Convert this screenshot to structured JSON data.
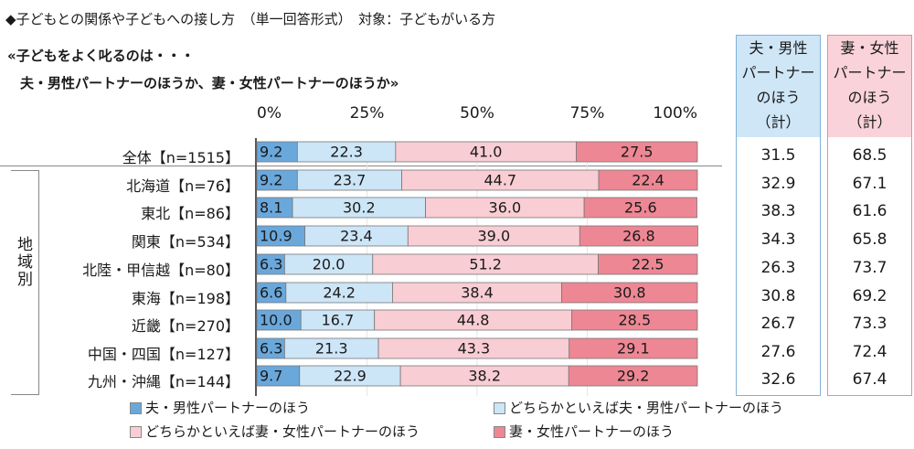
{
  "header": {
    "question_line": "◆子どもとの関係や子どもへの接し方　（単一回答形式）　対象：子どもがいる方",
    "subtitle_line1": "«子どもをよく叱るのは・・・",
    "subtitle_line2": "夫・男性パートナーのほうか、妻・女性パートナーのほうか»",
    "region_label": "地域別"
  },
  "summary_headers": {
    "male": [
      "夫・男性",
      "パートナー",
      "のほう",
      "（計）"
    ],
    "female": [
      "妻・女性",
      "パートナー",
      "のほう",
      "（計）"
    ]
  },
  "colors": {
    "male": "#6aa8dc",
    "male_lean": "#cce5f7",
    "female_lean": "#f8cdd3",
    "female": "#ee8794",
    "bar_border": "#777777",
    "male_summary_bg": "#cfe6f7",
    "female_summary_bg": "#f9d3d9"
  },
  "chart_data": {
    "type": "bar",
    "orientation": "horizontal",
    "stacked": true,
    "percent_stacked": true,
    "xlim": [
      0,
      100
    ],
    "x_ticks": [
      "0%",
      "25%",
      "50%",
      "75%",
      "100%"
    ],
    "legend_position": "bottom",
    "categories": [
      "全体【n=1515】",
      "北海道【n=76】",
      "東北【n=86】",
      "関東【n=534】",
      "北陸・甲信越【n=80】",
      "東海【n=198】",
      "近畿【n=270】",
      "中国・四国【n=127】",
      "九州・沖縄【n=144】"
    ],
    "series": [
      {
        "name": "夫・男性パートナーのほう",
        "color_key": "male",
        "values": [
          9.2,
          9.2,
          8.1,
          10.9,
          6.3,
          6.6,
          10.0,
          6.3,
          9.7
        ]
      },
      {
        "name": "どちらかといえば夫・男性パートナーのほう",
        "color_key": "male_lean",
        "values": [
          22.3,
          23.7,
          30.2,
          23.4,
          20.0,
          24.2,
          16.7,
          21.3,
          22.9
        ]
      },
      {
        "name": "どちらかといえば妻・女性パートナーのほう",
        "color_key": "female_lean",
        "values": [
          41.0,
          44.7,
          36.0,
          39.0,
          51.2,
          38.4,
          44.8,
          43.3,
          38.2
        ]
      },
      {
        "name": "妻・女性パートナーのほう",
        "color_key": "female",
        "values": [
          27.5,
          22.4,
          25.6,
          26.8,
          22.5,
          30.8,
          28.5,
          29.1,
          29.2
        ]
      }
    ],
    "totals": {
      "male": [
        "31.5",
        "32.9",
        "38.3",
        "34.3",
        "26.3",
        "30.8",
        "26.7",
        "27.6",
        "32.6"
      ],
      "female": [
        "68.5",
        "67.1",
        "61.6",
        "65.8",
        "73.7",
        "69.2",
        "73.3",
        "72.4",
        "67.4"
      ]
    }
  }
}
